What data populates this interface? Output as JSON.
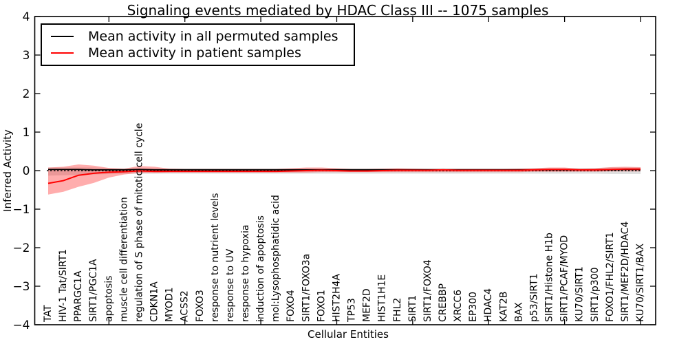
{
  "figure": {
    "title": "Signaling events mediated by HDAC Class III -- 1075 samples",
    "xlabel": "Cellular Entities",
    "ylabel": "Inferred Activity"
  },
  "legend": {
    "entries": [
      {
        "label": "Mean activity in all permuted samples",
        "color": "#000000"
      },
      {
        "label": "Mean activity in patient samples",
        "color": "#ff0000"
      }
    ]
  },
  "chart_data": {
    "type": "line",
    "title": "Signaling events mediated by HDAC Class III -- 1075 samples",
    "xlabel": "Cellular Entities",
    "ylabel": "Inferred Activity",
    "ylim": [
      -4,
      4
    ],
    "yticks": [
      -4,
      -3,
      -2,
      -1,
      0,
      1,
      2,
      3,
      4
    ],
    "ytick_labels": [
      "−4",
      "−3",
      "−2",
      "−1",
      "0",
      "1",
      "2",
      "3",
      "4"
    ],
    "grid": false,
    "legend_position": "upper left",
    "xtick_mark_indices": [
      4,
      9,
      14,
      19,
      24,
      29,
      34,
      39
    ],
    "zero_line": {
      "value": 0,
      "color": "#000000",
      "style": "dotted"
    },
    "categories": [
      "TAT",
      "HIV-1 Tat/SIRT1",
      "PPARGC1A",
      "SIRT1/PGC1A",
      "apoptosis",
      "muscle cell differentiation",
      "regulation of S phase of mitotic cell cycle",
      "CDKN1A",
      "MYOD1",
      "ACSS2",
      "FOXO3",
      "response to nutrient levels",
      "response to UV",
      "response to hypoxia",
      "induction of apoptosis",
      "mol:Lysophosphatidic acid",
      "FOXO4",
      "SIRT1/FOXO3a",
      "FOXO1",
      "HIST2H4A",
      "TP53",
      "MEF2D",
      "HIST1H1E",
      "FHL2",
      "SIRT1",
      "SIRT1/FOXO4",
      "CREBBP",
      "XRCC6",
      "EP300",
      "HDAC4",
      "KAT2B",
      "BAX",
      "p53/SIRT1",
      "SIRT1/Histone H1b",
      "SIRT1/PCAF/MYOD",
      "KU70/SIRT1",
      "SIRT1/p300",
      "FOXO1/FHL2/SIRT1",
      "SIRT1/MEF2D/HDAC4",
      "KU70/SIRT1/BAX"
    ],
    "series": [
      {
        "name": "Mean activity in all permuted samples",
        "key": "permuted",
        "color": "#000000",
        "line_width": 1.7,
        "band_fill": "rgba(0,0,0,0.12)",
        "values": [
          0.03,
          0.03,
          0.03,
          0.02,
          0.02,
          0.02,
          0.03,
          0.02,
          0.02,
          0.02,
          0.02,
          0.02,
          0.02,
          0.02,
          0.02,
          0.02,
          0.02,
          0.02,
          0.02,
          0.02,
          0.02,
          0.02,
          0.02,
          0.02,
          0.02,
          0.02,
          0.02,
          0.02,
          0.02,
          0.02,
          0.02,
          0.02,
          0.02,
          0.02,
          0.02,
          0.02,
          0.02,
          0.02,
          0.03,
          0.03
        ],
        "band_upper": [
          0.08,
          0.08,
          0.08,
          0.08,
          0.07,
          0.07,
          0.07,
          0.07,
          0.07,
          0.07,
          0.07,
          0.07,
          0.07,
          0.07,
          0.07,
          0.07,
          0.07,
          0.07,
          0.07,
          0.07,
          0.07,
          0.07,
          0.07,
          0.07,
          0.07,
          0.07,
          0.07,
          0.07,
          0.07,
          0.07,
          0.07,
          0.07,
          0.07,
          0.07,
          0.07,
          0.07,
          0.07,
          0.08,
          0.08,
          0.08
        ],
        "band_lower": [
          -0.13,
          -0.12,
          -0.11,
          -0.1,
          -0.09,
          -0.08,
          -0.08,
          -0.08,
          -0.08,
          -0.08,
          -0.08,
          -0.08,
          -0.08,
          -0.08,
          -0.08,
          -0.08,
          -0.08,
          -0.08,
          -0.08,
          -0.08,
          -0.08,
          -0.08,
          -0.08,
          -0.08,
          -0.08,
          -0.08,
          -0.08,
          -0.08,
          -0.08,
          -0.08,
          -0.08,
          -0.08,
          -0.08,
          -0.08,
          -0.08,
          -0.08,
          -0.08,
          -0.09,
          -0.09,
          -0.09
        ]
      },
      {
        "name": "Mean activity in patient samples",
        "key": "patient",
        "color": "#ff0000",
        "line_width": 2,
        "band_fill": "rgba(255,0,0,0.32)",
        "values": [
          -0.33,
          -0.26,
          -0.12,
          -0.07,
          -0.04,
          -0.03,
          -0.01,
          -0.02,
          -0.02,
          -0.02,
          -0.02,
          -0.02,
          -0.02,
          -0.02,
          -0.02,
          -0.02,
          -0.01,
          0.0,
          0.01,
          0.0,
          -0.01,
          -0.01,
          0.0,
          0.01,
          0.01,
          0.01,
          0.02,
          0.01,
          0.01,
          0.01,
          0.01,
          0.01,
          0.02,
          0.03,
          0.03,
          0.02,
          0.02,
          0.03,
          0.04,
          0.04
        ],
        "band_upper": [
          0.08,
          0.1,
          0.16,
          0.13,
          0.07,
          0.05,
          0.12,
          0.1,
          0.05,
          0.04,
          0.04,
          0.04,
          0.04,
          0.04,
          0.04,
          0.04,
          0.06,
          0.08,
          0.08,
          0.06,
          0.04,
          0.04,
          0.05,
          0.06,
          0.05,
          0.04,
          0.04,
          0.04,
          0.04,
          0.04,
          0.04,
          0.05,
          0.06,
          0.08,
          0.08,
          0.05,
          0.06,
          0.09,
          0.1,
          0.09
        ],
        "band_lower": [
          -0.62,
          -0.55,
          -0.42,
          -0.32,
          -0.18,
          -0.1,
          -0.06,
          -0.06,
          -0.05,
          -0.05,
          -0.05,
          -0.05,
          -0.05,
          -0.05,
          -0.05,
          -0.05,
          -0.05,
          -0.05,
          -0.04,
          -0.04,
          -0.04,
          -0.04,
          -0.04,
          -0.04,
          -0.04,
          -0.04,
          -0.04,
          -0.04,
          -0.04,
          -0.04,
          -0.04,
          -0.04,
          -0.03,
          -0.03,
          -0.03,
          -0.03,
          -0.03,
          -0.02,
          -0.02,
          -0.02
        ]
      }
    ]
  }
}
